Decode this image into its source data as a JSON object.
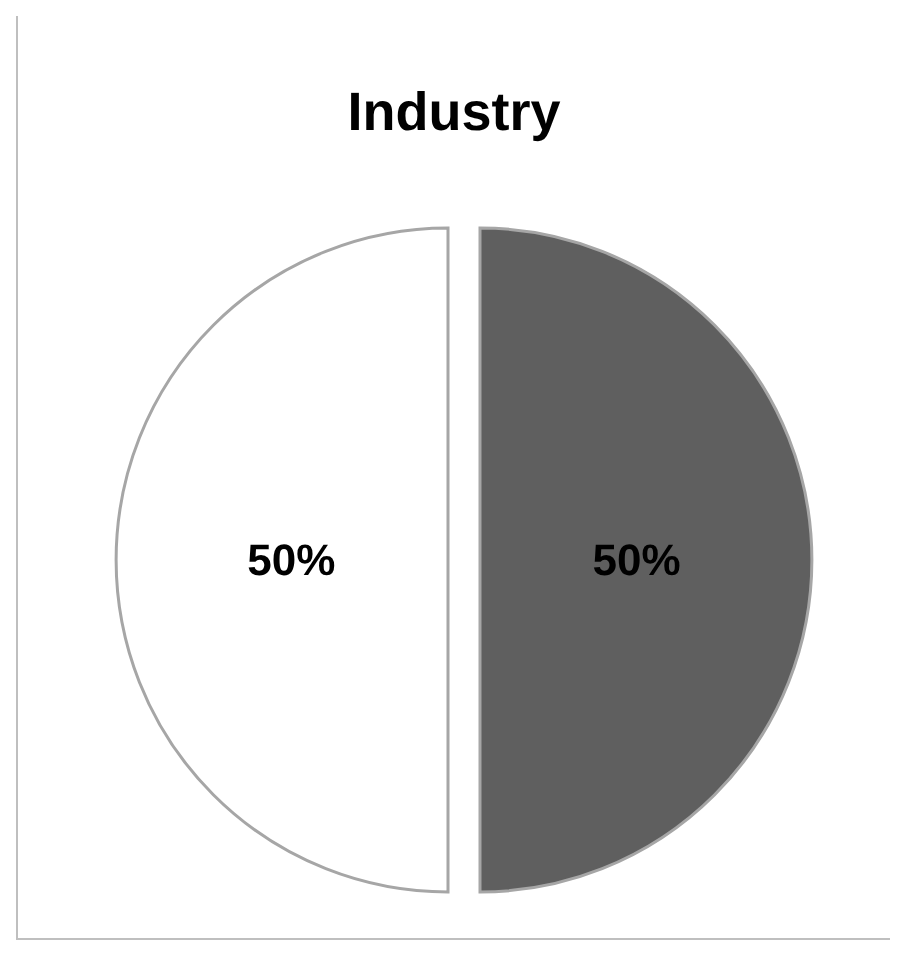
{
  "chart_data": {
    "type": "pie",
    "title": "Industry",
    "categories": [
      null,
      null
    ],
    "values": [
      50,
      50
    ],
    "colors": [
      "#5f5f5f",
      "#ffffff"
    ],
    "value_labels": [
      "50%",
      "50%"
    ],
    "legend": false
  }
}
